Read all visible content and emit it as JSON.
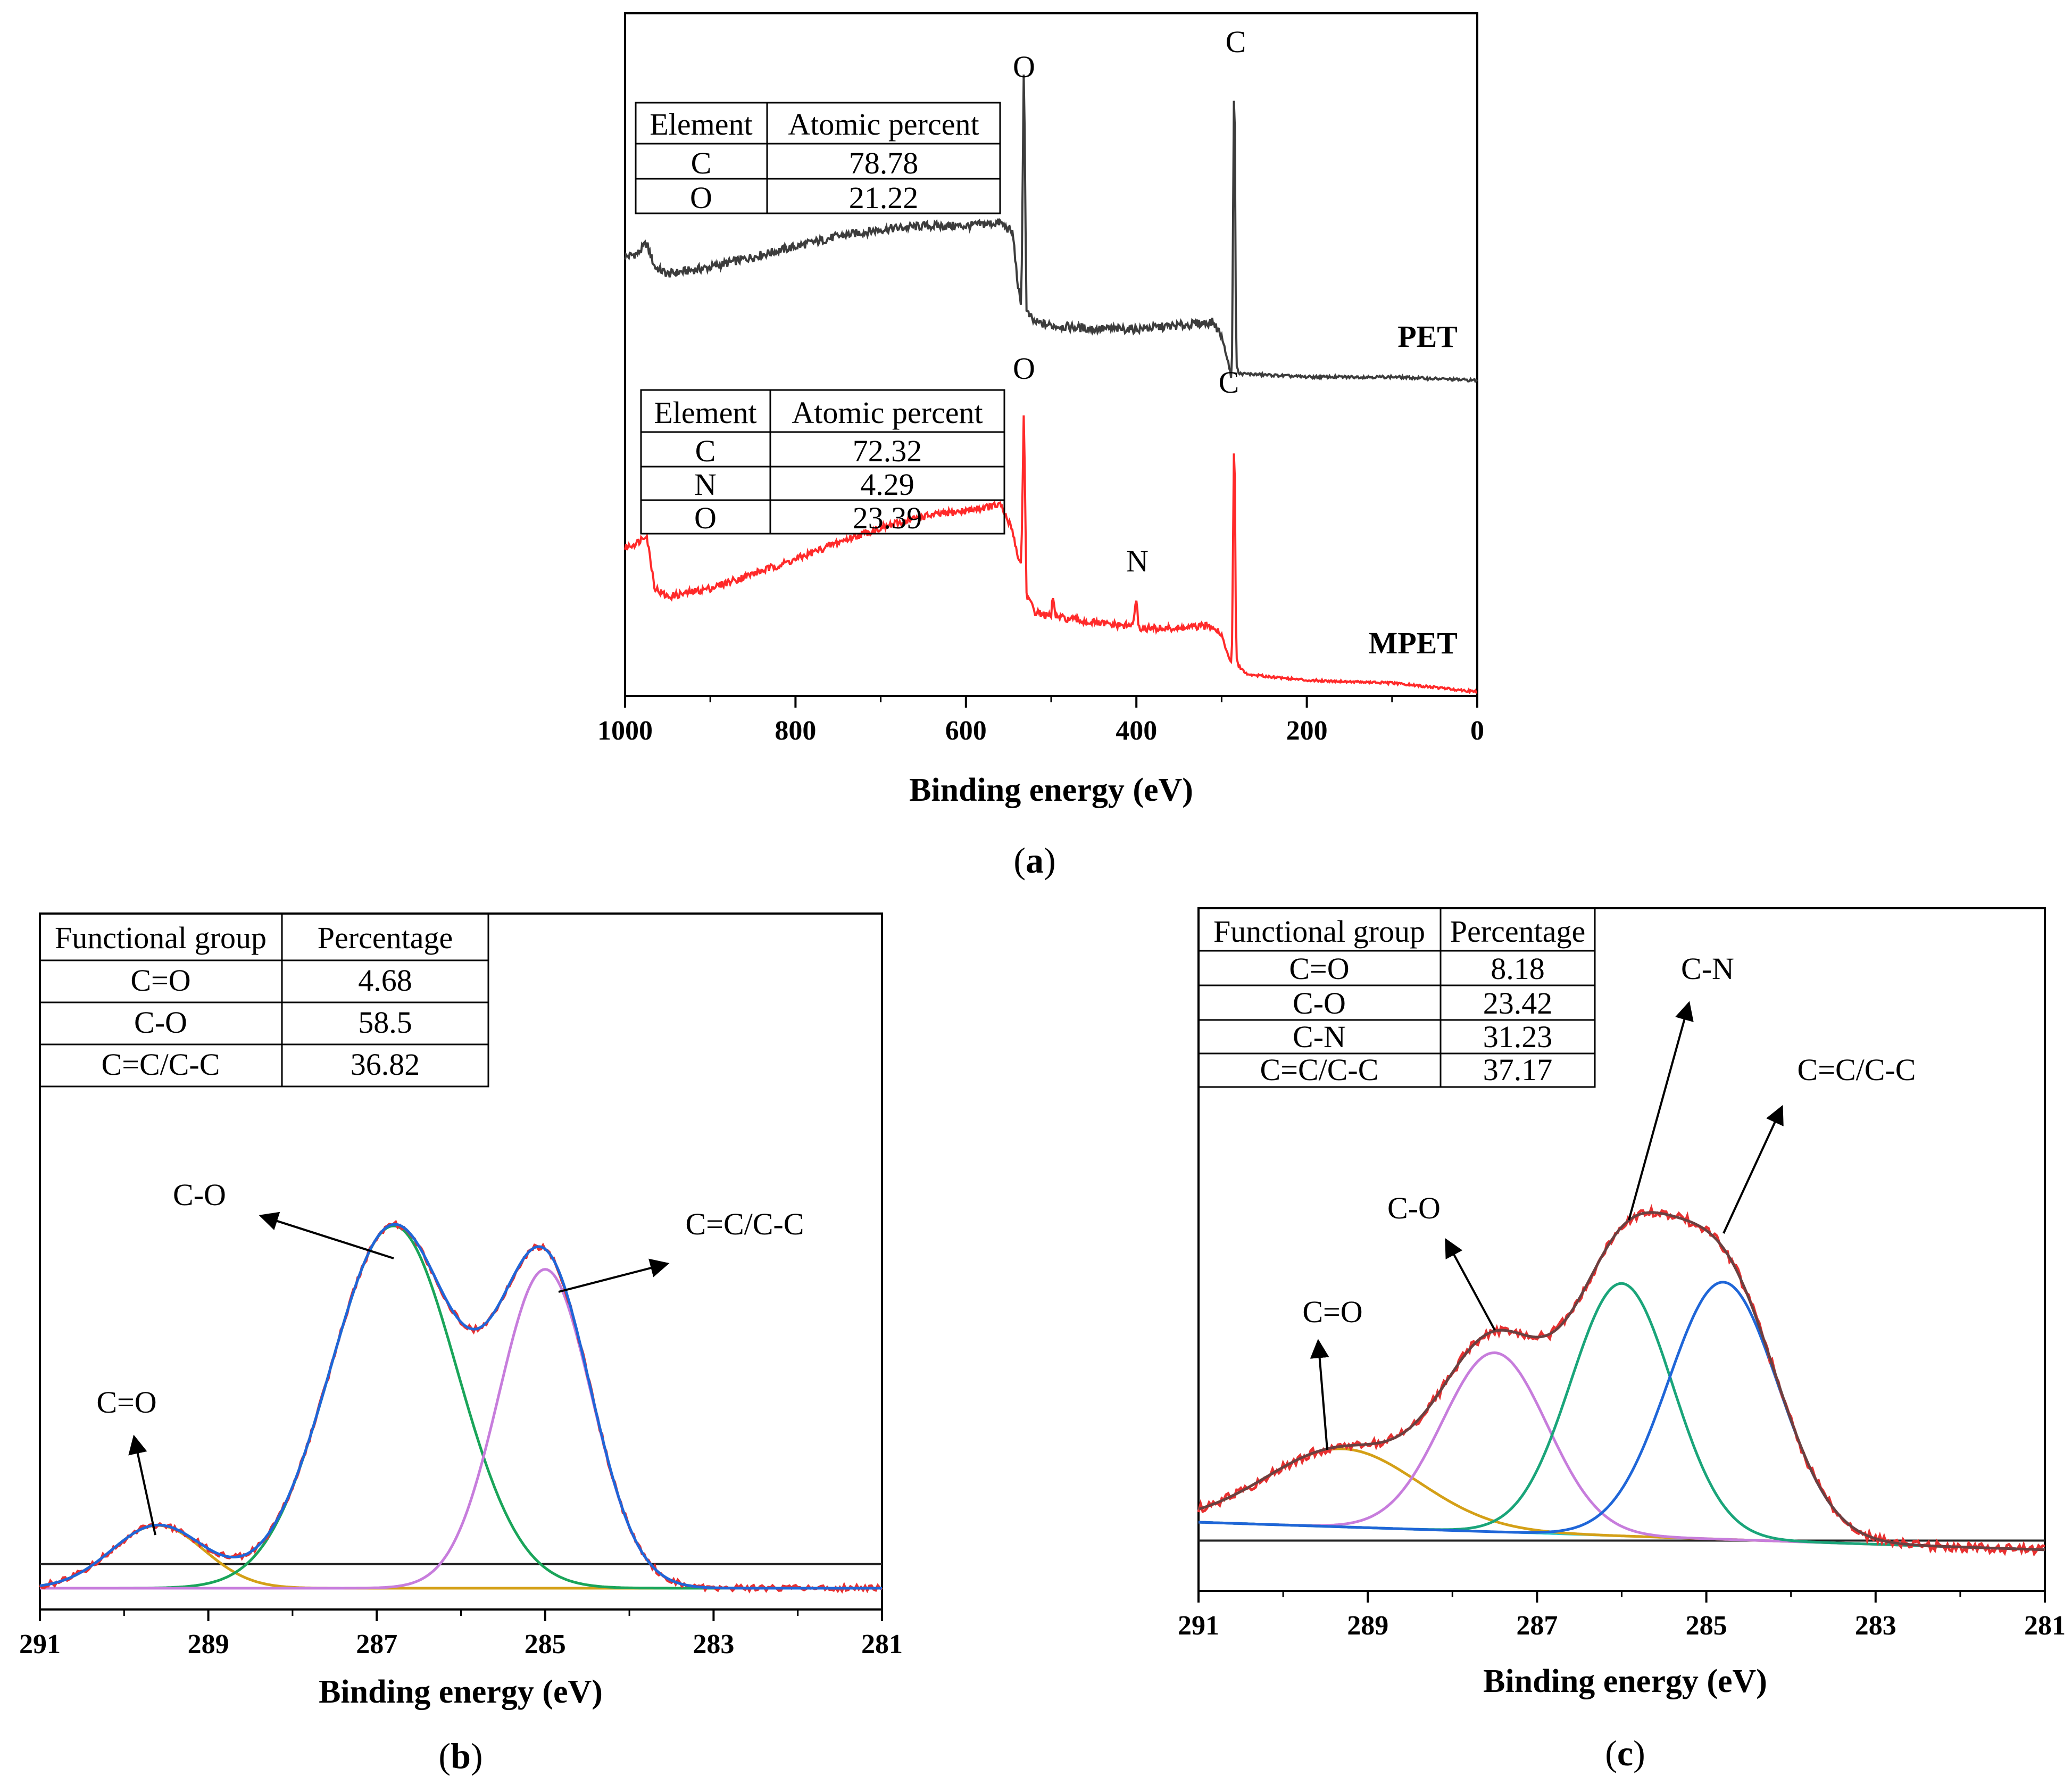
{
  "chart_data": [
    {
      "panel": "(a)",
      "type": "line",
      "xlabel": "Binding energy (eV)",
      "ylabel": "",
      "xlim": [
        1000,
        0
      ],
      "x_ticks": [
        1000,
        800,
        600,
        400,
        200,
        0
      ],
      "series": [
        {
          "name": "PET",
          "color": "#3c3c3c",
          "points": [
            [
              1000,
              0.36
            ],
            [
              985,
              0.37
            ],
            [
              975,
              0.4
            ],
            [
              965,
              0.33
            ],
            [
              950,
              0.31
            ],
            [
              900,
              0.33
            ],
            [
              850,
              0.36
            ],
            [
              800,
              0.39
            ],
            [
              750,
              0.42
            ],
            [
              700,
              0.44
            ],
            [
              650,
              0.45
            ],
            [
              600,
              0.45
            ],
            [
              560,
              0.46
            ],
            [
              545,
              0.43
            ],
            [
              540,
              0.3
            ],
            [
              535,
              0.2
            ],
            [
              532,
              0.95
            ],
            [
              529,
              0.2
            ],
            [
              520,
              0.17
            ],
            [
              500,
              0.16
            ],
            [
              450,
              0.15
            ],
            [
              400,
              0.15
            ],
            [
              350,
              0.16
            ],
            [
              310,
              0.17
            ],
            [
              300,
              0.13
            ],
            [
              292,
              0.05
            ],
            [
              288,
              0.0
            ],
            [
              285,
              1.0
            ],
            [
              283,
              0.05
            ],
            [
              280,
              0.02
            ],
            [
              200,
              0.01
            ],
            [
              100,
              0.01
            ],
            [
              0,
              0.0
            ]
          ]
        },
        {
          "name": "MPET",
          "color": "#ff2a2a",
          "points": [
            [
              1000,
              0.5
            ],
            [
              985,
              0.52
            ],
            [
              975,
              0.55
            ],
            [
              965,
              0.36
            ],
            [
              950,
              0.33
            ],
            [
              900,
              0.36
            ],
            [
              850,
              0.41
            ],
            [
              800,
              0.46
            ],
            [
              750,
              0.52
            ],
            [
              700,
              0.57
            ],
            [
              650,
              0.61
            ],
            [
              600,
              0.63
            ],
            [
              560,
              0.65
            ],
            [
              545,
              0.56
            ],
            [
              540,
              0.48
            ],
            [
              535,
              0.44
            ],
            [
              532,
              1.0
            ],
            [
              529,
              0.34
            ],
            [
              520,
              0.28
            ],
            [
              500,
              0.26
            ],
            [
              498,
              0.34
            ],
            [
              495,
              0.26
            ],
            [
              450,
              0.24
            ],
            [
              420,
              0.23
            ],
            [
              405,
              0.23
            ],
            [
              400,
              0.31
            ],
            [
              397,
              0.22
            ],
            [
              350,
              0.22
            ],
            [
              310,
              0.23
            ],
            [
              300,
              0.2
            ],
            [
              292,
              0.12
            ],
            [
              288,
              0.1
            ],
            [
              285,
              0.99
            ],
            [
              283,
              0.12
            ],
            [
              280,
              0.09
            ],
            [
              270,
              0.06
            ],
            [
              200,
              0.04
            ],
            [
              100,
              0.03
            ],
            [
              0,
              0.0
            ]
          ]
        }
      ],
      "peak_labels": [
        "O",
        "C",
        "O",
        "C",
        "N"
      ],
      "series_labels": [
        "PET",
        "MPET"
      ],
      "tables": [
        {
          "headers": [
            "Element",
            "Atomic percent"
          ],
          "rows": [
            [
              "C",
              "78.78"
            ],
            [
              "O",
              "21.22"
            ]
          ]
        },
        {
          "headers": [
            "Element",
            "Atomic percent"
          ],
          "rows": [
            [
              "C",
              "72.32"
            ],
            [
              "N",
              "4.29"
            ],
            [
              "O",
              "23.39"
            ]
          ]
        }
      ]
    },
    {
      "panel": "(b)",
      "type": "line",
      "xlabel": "Binding energy (eV)",
      "ylabel": "",
      "xlim": [
        291,
        281
      ],
      "x_ticks": [
        291,
        289,
        287,
        285,
        283,
        281
      ],
      "baseline": 0.05,
      "components": [
        {
          "name": "C=O",
          "center": 289.6,
          "height": 0.13,
          "sigma": 0.55,
          "color": "#d4a017"
        },
        {
          "name": "C-O",
          "center": 286.8,
          "height": 0.75,
          "sigma": 0.75,
          "color": "#1aa55a"
        },
        {
          "name": "C=C/C-C",
          "center": 285.0,
          "height": 0.66,
          "sigma": 0.55,
          "color": "#c77ddc"
        }
      ],
      "envelope_color": "#1f66d8",
      "raw_color": "#e83030",
      "peak_labels": [
        "C-O",
        "C=C/C-C",
        "C=O"
      ],
      "table": {
        "headers": [
          "Functional group",
          "Percentage"
        ],
        "rows": [
          [
            "C=O",
            "4.68"
          ],
          [
            "C-O",
            "58.5"
          ],
          [
            "C=C/C-C",
            "36.82"
          ]
        ]
      }
    },
    {
      "panel": "(c)",
      "type": "line",
      "xlabel": "Binding energy (eV)",
      "ylabel": "",
      "xlim": [
        291,
        281
      ],
      "x_ticks": [
        291,
        289,
        287,
        285,
        283,
        281
      ],
      "baseline_start": 0.08,
      "baseline_end": 0.02,
      "components": [
        {
          "name": "C=O",
          "center": 289.3,
          "height": 0.17,
          "sigma": 0.9,
          "color": "#d4a017"
        },
        {
          "name": "C-O",
          "center": 287.5,
          "height": 0.39,
          "sigma": 0.62,
          "color": "#c77ddc"
        },
        {
          "name": "C-N",
          "center": 286.0,
          "height": 0.55,
          "sigma": 0.6,
          "color": "#1aa57a"
        },
        {
          "name": "C=C/C-C",
          "center": 284.8,
          "height": 0.56,
          "sigma": 0.65,
          "color": "#1f66d8"
        }
      ],
      "envelope_color": "#6b4040",
      "raw_color": "#e83030",
      "peak_labels": [
        "C=O",
        "C-O",
        "C-N",
        "C=C/C-C"
      ],
      "table": {
        "headers": [
          "Functional group",
          "Percentage"
        ],
        "rows": [
          [
            "C=O",
            "8.18"
          ],
          [
            "C-O",
            "23.42"
          ],
          [
            "C-N",
            "31.23"
          ],
          [
            "C=C/C-C",
            "37.17"
          ]
        ]
      }
    }
  ]
}
